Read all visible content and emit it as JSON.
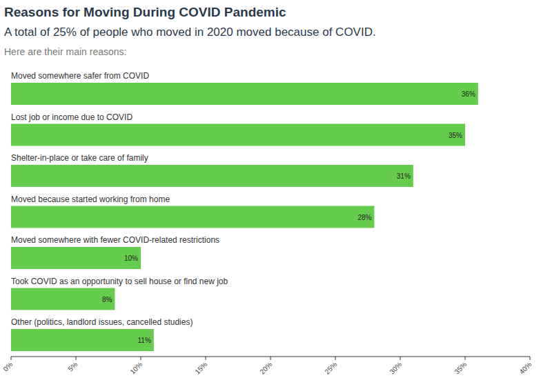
{
  "chart_data": {
    "type": "bar",
    "orientation": "horizontal",
    "title": "Reasons for Moving During COVID Pandemic",
    "subtitle": "A total of 25% of people who moved in 2020 moved because of COVID.",
    "annotations": [
      "Here are their main reasons:"
    ],
    "categories": [
      "Moved somewhere safer from COVID",
      "Lost job or income due to COVID",
      "Shelter-in-place or take care of family",
      "Moved because started working from home",
      "Moved somewhere with fewer COVID-related restrictions",
      "Took COVID as an opportunity to sell house or find new job",
      "Other (politics, landlord issues, cancelled studies)"
    ],
    "values": [
      36,
      35,
      31,
      28,
      10,
      8,
      11
    ],
    "value_labels": [
      "36%",
      "35%",
      "31%",
      "28%",
      "10%",
      "8%",
      "11%"
    ],
    "color": "#66cc4d",
    "xlim": [
      0,
      40
    ],
    "xticks": [
      {
        "value": 0,
        "label": "0%"
      },
      {
        "value": 5,
        "label": "5%"
      },
      {
        "value": 10,
        "label": "10%"
      },
      {
        "value": 15,
        "label": "15%"
      },
      {
        "value": 20,
        "label": "20%"
      },
      {
        "value": 25,
        "label": "25%"
      },
      {
        "value": 30,
        "label": "30%"
      },
      {
        "value": 35,
        "label": "35%"
      },
      {
        "value": 40,
        "label": "40%"
      }
    ],
    "grid": false,
    "data_labels": true
  }
}
